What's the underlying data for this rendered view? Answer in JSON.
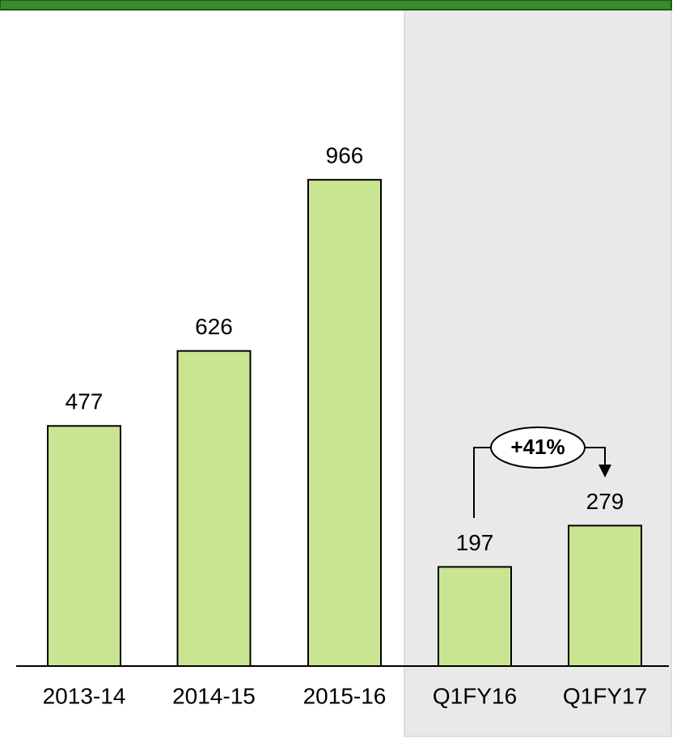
{
  "chart_data": {
    "type": "bar",
    "categories": [
      "2013-14",
      "2014-15",
      "2015-16",
      "Q1FY16",
      "Q1FY17"
    ],
    "values": [
      477,
      626,
      966,
      197,
      279
    ],
    "color": "#c9e592",
    "annotation": "+41%"
  }
}
